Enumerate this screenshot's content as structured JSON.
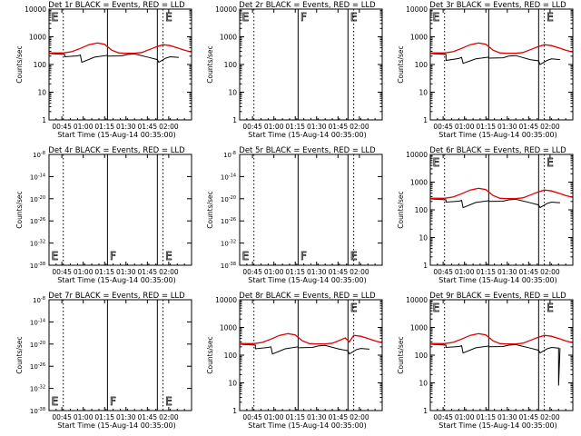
{
  "figure": {
    "xlabel": "Start Time (15-Aug-14 00:35:00)",
    "ylabel": "Counts/sec"
  },
  "colors": {
    "events": "#000000",
    "lld": "#e00000",
    "axes": "#000000",
    "background": "#ffffff"
  },
  "chart_data": [
    {
      "type": "line",
      "title": "Det 1r BLACK = Events, RED = LLD",
      "xlabel": "Start Time (15-Aug-14 00:35:00)",
      "ylabel": "Counts/sec",
      "xlim": [
        "00:36",
        "02:16"
      ],
      "y_scale": "log",
      "ylim": [
        1,
        10000
      ],
      "x_ticks": [
        "00:45",
        "01:00",
        "01:15",
        "01:30",
        "01:45",
        "02:00"
      ],
      "y_ticks": [
        "1",
        "10",
        "100",
        "1000",
        "10000"
      ],
      "solid_vlines": [
        "01:17",
        "01:52"
      ],
      "dotted_vlines": [
        "00:46",
        "01:56"
      ],
      "marker_letters": [
        {
          "text": "E",
          "x": "00:37"
        },
        {
          "text": "E",
          "x": "01:57"
        }
      ],
      "series": [
        {
          "name": "Events",
          "x": [
            "00:36",
            "00:47",
            "00:47",
            "00:56",
            "00:58",
            "00:59",
            "01:08",
            "01:17",
            "01:17",
            "01:27",
            "01:31",
            "01:36",
            "01:46",
            "01:52",
            "01:53",
            "01:58",
            "02:01",
            "02:07"
          ],
          "values": [
            250,
            230,
            190,
            205,
            220,
            120,
            185,
            215,
            200,
            205,
            230,
            240,
            180,
            150,
            120,
            170,
            190,
            180
          ]
        },
        {
          "name": "LLD",
          "x": [
            "00:36",
            "00:46",
            "00:52",
            "00:58",
            "01:04",
            "01:10",
            "01:15",
            "01:20",
            "01:25",
            "01:30",
            "01:36",
            "01:41",
            "01:46",
            "01:51",
            "01:56",
            "02:01",
            "02:06",
            "02:11",
            "02:16"
          ],
          "values": [
            260,
            260,
            290,
            380,
            520,
            600,
            540,
            330,
            260,
            255,
            255,
            270,
            340,
            430,
            520,
            480,
            400,
            330,
            280
          ]
        }
      ]
    },
    {
      "type": "line",
      "title": "Det 2r BLACK = Events, RED = LLD",
      "xlabel": "Start Time (15-Aug-14 00:35:00)",
      "ylabel": "Counts/sec",
      "xlim": [
        "00:36",
        "02:16"
      ],
      "y_scale": "log",
      "ylim": [
        1,
        10000
      ],
      "x_ticks": [
        "00:45",
        "01:00",
        "01:15",
        "01:30",
        "01:45",
        "02:00"
      ],
      "y_ticks": [
        "1",
        "10",
        "100",
        "1000",
        "10000"
      ],
      "solid_vlines": [
        "01:17",
        "01:52"
      ],
      "dotted_vlines": [
        "00:46",
        "01:56"
      ],
      "marker_letters": [
        {
          "text": "E",
          "x": "00:37"
        },
        {
          "text": "F",
          "x": "01:18"
        },
        {
          "text": "E",
          "x": "01:53"
        }
      ],
      "series": []
    },
    {
      "type": "line",
      "title": "Det 3r BLACK = Events, RED = LLD",
      "xlabel": "Start Time (15-Aug-14 00:35:00)",
      "ylabel": "Counts/sec",
      "xlim": [
        "00:36",
        "02:16"
      ],
      "y_scale": "log",
      "ylim": [
        1,
        10000
      ],
      "x_ticks": [
        "00:45",
        "01:00",
        "01:15",
        "01:30",
        "01:45",
        "02:00"
      ],
      "y_ticks": [
        "1",
        "10",
        "100",
        "1000",
        "10000"
      ],
      "solid_vlines": [
        "01:17",
        "01:52"
      ],
      "dotted_vlines": [
        "00:46",
        "01:56"
      ],
      "marker_letters": [
        {
          "text": "E",
          "x": "00:37"
        },
        {
          "text": "E",
          "x": "01:57"
        }
      ],
      "series": [
        {
          "name": "Events",
          "x": [
            "00:36",
            "00:47",
            "00:47",
            "00:56",
            "00:58",
            "00:59",
            "01:08",
            "01:17",
            "01:17",
            "01:27",
            "01:31",
            "01:36",
            "01:46",
            "01:52",
            "01:53",
            "01:58",
            "02:01",
            "02:07"
          ],
          "values": [
            250,
            230,
            140,
            165,
            180,
            110,
            160,
            185,
            170,
            175,
            200,
            210,
            150,
            135,
            100,
            140,
            160,
            150
          ]
        },
        {
          "name": "LLD",
          "x": [
            "00:36",
            "00:46",
            "00:52",
            "00:58",
            "01:04",
            "01:10",
            "01:15",
            "01:20",
            "01:25",
            "01:30",
            "01:36",
            "01:41",
            "01:46",
            "01:51",
            "01:56",
            "02:01",
            "02:06",
            "02:11",
            "02:16"
          ],
          "values": [
            260,
            260,
            290,
            380,
            520,
            600,
            540,
            330,
            260,
            255,
            255,
            270,
            340,
            430,
            520,
            480,
            400,
            330,
            280
          ]
        }
      ]
    },
    {
      "type": "line",
      "title": "Det 4r BLACK = Events, RED = LLD",
      "xlabel": "Start Time (15-Aug-14 00:35:00)",
      "ylabel": "Counts/sec",
      "xlim": [
        "00:36",
        "02:16"
      ],
      "y_scale": "log",
      "ylim": [
        "1e-38",
        "1e-8"
      ],
      "x_ticks": [
        "00:45",
        "01:00",
        "01:15",
        "01:30",
        "01:45",
        "02:00"
      ],
      "y_ticks": [],
      "solid_vlines": [
        "01:17",
        "01:52"
      ],
      "dotted_vlines": [
        "00:46",
        "01:56"
      ],
      "marker_letters": [
        {
          "text": "E",
          "x": "00:37"
        },
        {
          "text": "F",
          "x": "01:18"
        },
        {
          "text": "E",
          "x": "01:57"
        }
      ],
      "series": []
    },
    {
      "type": "line",
      "title": "Det 5r BLACK = Events, RED = LLD",
      "xlabel": "Start Time (15-Aug-14 00:35:00)",
      "ylabel": "Counts/sec",
      "xlim": [
        "00:36",
        "02:16"
      ],
      "y_scale": "log",
      "ylim": [
        "1e-38",
        "1e-8"
      ],
      "x_ticks": [
        "00:45",
        "01:00",
        "01:15",
        "01:30",
        "01:45",
        "02:00"
      ],
      "y_ticks": [],
      "solid_vlines": [
        "01:17",
        "01:52"
      ],
      "dotted_vlines": [
        "00:46",
        "01:56"
      ],
      "marker_letters": [
        {
          "text": "E",
          "x": "00:37"
        },
        {
          "text": "F",
          "x": "01:18"
        },
        {
          "text": "E",
          "x": "01:53"
        }
      ],
      "series": []
    },
    {
      "type": "line",
      "title": "Det 6r BLACK = Events, RED = LLD",
      "xlabel": "Start Time (15-Aug-14 00:35:00)",
      "ylabel": "Counts/sec",
      "xlim": [
        "00:36",
        "02:16"
      ],
      "y_scale": "log",
      "ylim": [
        1,
        10000
      ],
      "x_ticks": [
        "00:45",
        "01:00",
        "01:15",
        "01:30",
        "01:45",
        "02:00"
      ],
      "y_ticks": [
        "1",
        "10",
        "100",
        "1000",
        "10000"
      ],
      "solid_vlines": [
        "01:17",
        "01:52"
      ],
      "dotted_vlines": [
        "00:46",
        "01:56"
      ],
      "marker_letters": [
        {
          "text": "E",
          "x": "00:37"
        },
        {
          "text": "E",
          "x": "01:57"
        }
      ],
      "series": [
        {
          "name": "Events",
          "x": [
            "00:36",
            "00:47",
            "00:47",
            "00:56",
            "00:58",
            "00:59",
            "01:08",
            "01:17",
            "01:17",
            "01:27",
            "01:31",
            "01:36",
            "01:46",
            "01:52",
            "01:53",
            "01:58",
            "02:01",
            "02:07"
          ],
          "values": [
            250,
            230,
            190,
            205,
            220,
            120,
            185,
            215,
            200,
            205,
            230,
            240,
            180,
            150,
            120,
            170,
            190,
            180
          ]
        },
        {
          "name": "LLD",
          "x": [
            "00:36",
            "00:46",
            "00:52",
            "00:58",
            "01:04",
            "01:10",
            "01:15",
            "01:20",
            "01:25",
            "01:30",
            "01:36",
            "01:41",
            "01:46",
            "01:51",
            "01:56",
            "02:01",
            "02:06",
            "02:11",
            "02:16"
          ],
          "values": [
            260,
            260,
            290,
            380,
            520,
            600,
            540,
            330,
            260,
            255,
            255,
            270,
            340,
            430,
            520,
            480,
            400,
            330,
            280
          ]
        }
      ]
    },
    {
      "type": "line",
      "title": "Det 7r BLACK = Events, RED = LLD",
      "xlabel": "Start Time (15-Aug-14 00:35:00)",
      "ylabel": "Counts/sec",
      "xlim": [
        "00:36",
        "02:16"
      ],
      "y_scale": "log",
      "ylim": [
        "1e-38",
        "1e-8"
      ],
      "x_ticks": [
        "00:45",
        "01:00",
        "01:15",
        "01:30",
        "01:45",
        "02:00"
      ],
      "y_ticks": [],
      "solid_vlines": [
        "01:17",
        "01:52"
      ],
      "dotted_vlines": [
        "00:46",
        "01:56"
      ],
      "marker_letters": [
        {
          "text": "E",
          "x": "00:37"
        },
        {
          "text": "F",
          "x": "01:18"
        },
        {
          "text": "E",
          "x": "01:57"
        }
      ],
      "series": []
    },
    {
      "type": "line",
      "title": "Det 8r BLACK = Events, RED = LLD",
      "xlabel": "Start Time (15-Aug-14 00:35:00)",
      "ylabel": "Counts/sec",
      "xlim": [
        "00:36",
        "02:16"
      ],
      "y_scale": "log",
      "ylim": [
        1,
        10000
      ],
      "x_ticks": [
        "00:45",
        "01:00",
        "01:15",
        "01:30",
        "01:45",
        "02:00"
      ],
      "y_ticks": [
        "1",
        "10",
        "100",
        "1000",
        "10000"
      ],
      "solid_vlines": [
        "01:17",
        "01:52"
      ],
      "dotted_vlines": [
        "00:46",
        "01:56"
      ],
      "marker_letters": [
        {
          "text": "E",
          "x": "01:53"
        }
      ],
      "series": [
        {
          "name": "Events",
          "x": [
            "00:36",
            "00:47",
            "00:47",
            "00:56",
            "00:58",
            "00:59",
            "01:08",
            "01:17",
            "01:17",
            "01:27",
            "01:31",
            "01:36",
            "01:46",
            "01:52",
            "01:53",
            "01:58",
            "02:01",
            "02:07"
          ],
          "values": [
            250,
            230,
            170,
            190,
            200,
            110,
            170,
            200,
            185,
            190,
            215,
            225,
            165,
            145,
            110,
            160,
            175,
            165
          ]
        },
        {
          "name": "LLD",
          "x": [
            "00:36",
            "00:46",
            "00:52",
            "00:58",
            "01:04",
            "01:10",
            "01:15",
            "01:20",
            "01:25",
            "01:30",
            "01:36",
            "01:41",
            "01:46",
            "01:50",
            "01:53",
            "01:56",
            "02:01",
            "02:06",
            "02:11",
            "02:16"
          ],
          "values": [
            260,
            260,
            290,
            380,
            520,
            600,
            540,
            330,
            260,
            255,
            255,
            270,
            340,
            420,
            300,
            520,
            480,
            400,
            330,
            280
          ]
        }
      ]
    },
    {
      "type": "line",
      "title": "Det 9r BLACK = Events, RED = LLD",
      "xlabel": "Start Time (15-Aug-14 00:35:00)",
      "ylabel": "Counts/sec",
      "xlim": [
        "00:36",
        "02:16"
      ],
      "y_scale": "log",
      "ylim": [
        1,
        10000
      ],
      "x_ticks": [
        "00:45",
        "01:00",
        "01:15",
        "01:30",
        "01:45",
        "02:00"
      ],
      "y_ticks": [
        "1",
        "10",
        "100",
        "1000",
        "10000"
      ],
      "solid_vlines": [
        "01:17",
        "01:52"
      ],
      "dotted_vlines": [
        "00:46",
        "01:56"
      ],
      "marker_letters": [
        {
          "text": "E",
          "x": "00:37"
        },
        {
          "text": "E",
          "x": "01:57"
        }
      ],
      "series": [
        {
          "name": "Events",
          "x": [
            "00:36",
            "00:47",
            "00:47",
            "00:56",
            "00:58",
            "00:59",
            "01:08",
            "01:17",
            "01:17",
            "01:27",
            "01:31",
            "01:36",
            "01:46",
            "01:52",
            "01:53",
            "01:58",
            "02:01",
            "02:06",
            "02:06",
            "02:07"
          ],
          "values": [
            250,
            230,
            190,
            205,
            220,
            120,
            185,
            215,
            200,
            205,
            230,
            240,
            180,
            150,
            120,
            170,
            190,
            180,
            8,
            180
          ]
        },
        {
          "name": "LLD",
          "x": [
            "00:36",
            "00:46",
            "00:52",
            "00:58",
            "01:04",
            "01:10",
            "01:15",
            "01:20",
            "01:25",
            "01:30",
            "01:36",
            "01:41",
            "01:46",
            "01:51",
            "01:56",
            "02:01",
            "02:06",
            "02:11",
            "02:16"
          ],
          "values": [
            260,
            260,
            290,
            380,
            520,
            600,
            540,
            330,
            260,
            255,
            255,
            270,
            340,
            430,
            520,
            480,
            400,
            330,
            280
          ]
        }
      ]
    }
  ]
}
